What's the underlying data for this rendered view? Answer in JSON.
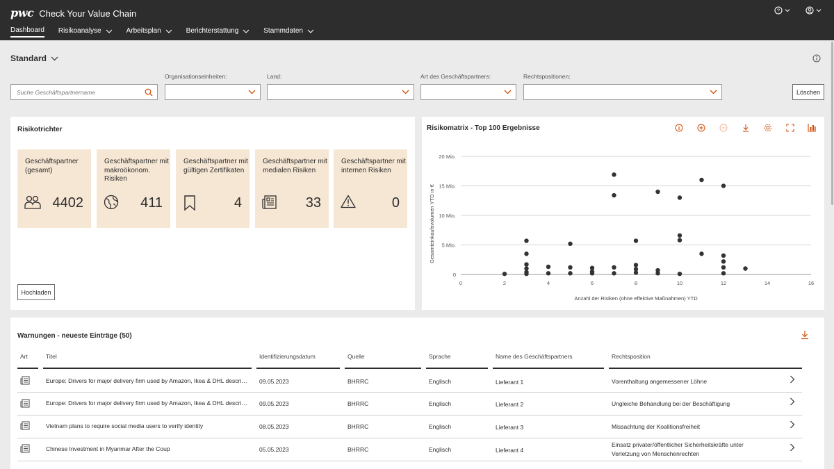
{
  "header": {
    "logo": "pwc",
    "app_title": "Check Your Value Chain",
    "nav": [
      "Dashboard",
      "Risikoanalyse",
      "Arbeitsplan",
      "Berichterstattung",
      "Stammdaten"
    ],
    "icons": [
      "help-icon",
      "user-icon"
    ]
  },
  "view": {
    "title": "Standard"
  },
  "filters": {
    "search_placeholder": "Suche Geschäftspartnername",
    "org_label": "Organisationseinheiten:",
    "land_label": "Land:",
    "partnerart_label": "Art des Geschäftspartners:",
    "recht_label": "Rechtspositionen:",
    "clear_label": "Löschen"
  },
  "funnel": {
    "title": "Risikotrichter",
    "upload_label": "Hochladen",
    "tiles": [
      {
        "label": "Geschäftspartner (gesamt)",
        "value": "4402",
        "icon": "people-icon"
      },
      {
        "label": "Geschäftspartner mit makroökonom. Risiken",
        "value": "411",
        "icon": "globe-icon"
      },
      {
        "label": "Geschäftspartner mit gültigen Zertifikaten",
        "value": "4",
        "icon": "bookmark-icon"
      },
      {
        "label": "Geschäftspartner mit medialen Risiken",
        "value": "33",
        "icon": "newspaper-icon"
      },
      {
        "label": "Geschäftspartner mit internen Risiken",
        "value": "0",
        "icon": "warning-icon"
      }
    ]
  },
  "matrix": {
    "title": "Risikomatrix - Top 100 Ergebnisse",
    "tools": [
      "info-icon",
      "zoom-in-icon",
      "zoom-out-icon",
      "download-icon",
      "settings-icon",
      "fullscreen-icon",
      "chart-icon"
    ],
    "accent": "#d04a02"
  },
  "chart_data": {
    "type": "scatter",
    "xlabel": "Anzahl der Risiken (ohne effektive Maßnahmen) YTD",
    "ylabel": "Gesamteinkaufsvolumen YTD in €",
    "xlim": [
      0,
      16
    ],
    "ylim": [
      0,
      20
    ],
    "x_ticks": [
      "0",
      "2",
      "4",
      "6",
      "8",
      "10",
      "12",
      "14",
      "16"
    ],
    "y_ticks": [
      "0",
      "5 Mio.",
      "10 Mio.",
      "15 Mio.",
      "20 Mio."
    ],
    "grid": "horizontal",
    "points": [
      {
        "x": 2,
        "y": 0.1
      },
      {
        "x": 3,
        "y": 5.7
      },
      {
        "x": 3,
        "y": 3.5
      },
      {
        "x": 3,
        "y": 1.7
      },
      {
        "x": 3,
        "y": 1.0
      },
      {
        "x": 3,
        "y": 0.4
      },
      {
        "x": 3,
        "y": 0.1
      },
      {
        "x": 4,
        "y": 1.3
      },
      {
        "x": 4,
        "y": 0.2
      },
      {
        "x": 5,
        "y": 5.2
      },
      {
        "x": 5,
        "y": 1.2
      },
      {
        "x": 5,
        "y": 0.2
      },
      {
        "x": 6,
        "y": 1.1
      },
      {
        "x": 6,
        "y": 0.5
      },
      {
        "x": 6,
        "y": 0.2
      },
      {
        "x": 7,
        "y": 16.9
      },
      {
        "x": 7,
        "y": 13.4
      },
      {
        "x": 7,
        "y": 1.2
      },
      {
        "x": 7,
        "y": 0.2
      },
      {
        "x": 8,
        "y": 5.7
      },
      {
        "x": 8,
        "y": 1.6
      },
      {
        "x": 8,
        "y": 0.9
      },
      {
        "x": 8,
        "y": 0.3
      },
      {
        "x": 9,
        "y": 14.0
      },
      {
        "x": 9,
        "y": 0.7
      },
      {
        "x": 9,
        "y": 0.2
      },
      {
        "x": 10,
        "y": 13.0
      },
      {
        "x": 10,
        "y": 6.6
      },
      {
        "x": 10,
        "y": 5.8
      },
      {
        "x": 10,
        "y": 0.1
      },
      {
        "x": 11,
        "y": 16.0
      },
      {
        "x": 11,
        "y": 3.5
      },
      {
        "x": 12,
        "y": 15.0
      },
      {
        "x": 12,
        "y": 3.2
      },
      {
        "x": 12,
        "y": 2.2
      },
      {
        "x": 12,
        "y": 1.2
      },
      {
        "x": 12,
        "y": 0.2
      },
      {
        "x": 13,
        "y": 1.0
      }
    ]
  },
  "warnings": {
    "title": "Warnungen - neueste Einträge (50)",
    "columns": [
      "Art",
      "Titel",
      "Identifizierungsdatum",
      "Quelle",
      "Sprache",
      "Name des Geschäftspartners",
      "Rechtsposition"
    ],
    "rows": [
      {
        "title": "Europe: Drivers for major delivery firm used by Amazon, Ikea & DHL describe exploitation",
        "date": "09.05.2023",
        "source": "BHRRC",
        "lang": "Englisch",
        "partner": "Lieferant 1",
        "legal": "Vorenthaltung angemessener Löhne"
      },
      {
        "title": "Europe: Drivers for major delivery firm used by Amazon, Ikea & DHL describe exploitation",
        "date": "09.05.2023",
        "source": "BHRRC",
        "lang": "Englisch",
        "partner": "Lieferant 2",
        "legal": "Ungleiche Behandlung bei der Beschäftigung"
      },
      {
        "title": "Vietnam plans to require social media users to verify identity",
        "date": "08.05.2023",
        "source": "BHRRC",
        "lang": "Englisch",
        "partner": "Lieferant 3",
        "legal": "Missachtung der Koalitionsfreiheit"
      },
      {
        "title": "Chinese Investment in Myanmar After the Coup",
        "date": "05.05.2023",
        "source": "BHRRC",
        "lang": "Englisch",
        "partner": "Lieferant 4",
        "legal": "Einsatz privater/öffentlicher Sicherheitskräfte unter Verletzung von Menschenrechten"
      }
    ]
  }
}
